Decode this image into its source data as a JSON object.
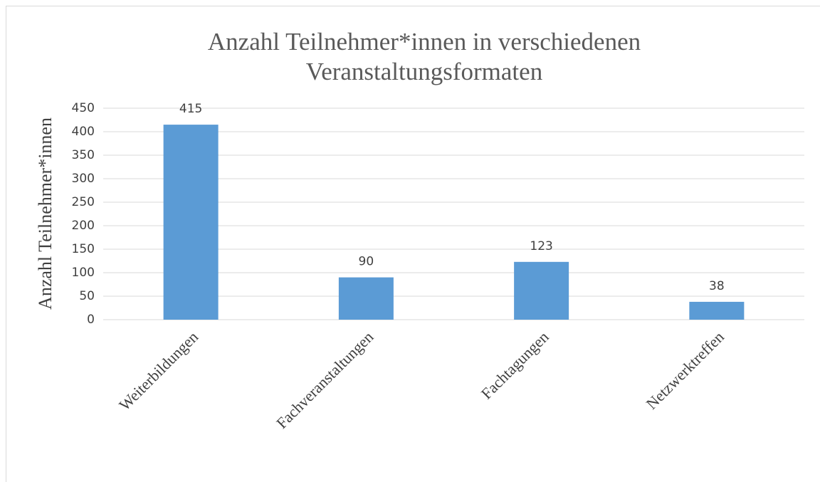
{
  "chart_data": {
    "type": "bar",
    "title": "Anzahl Teilnehmer*innen in verschiedenen Veranstaltungsformaten",
    "y_label": "Anzahl Teilnehmer*innen",
    "categories": [
      "Weiterbildungen",
      "Fachveranstaltungen",
      "Fachtagungen",
      "Netzwerktreffen"
    ],
    "values": [
      415,
      90,
      123,
      38
    ],
    "color": "#5b9bd5",
    "ylim": [
      0,
      450
    ],
    "yticks": [
      0,
      50,
      100,
      150,
      200,
      250,
      300,
      350,
      400,
      450
    ],
    "grid": true
  }
}
